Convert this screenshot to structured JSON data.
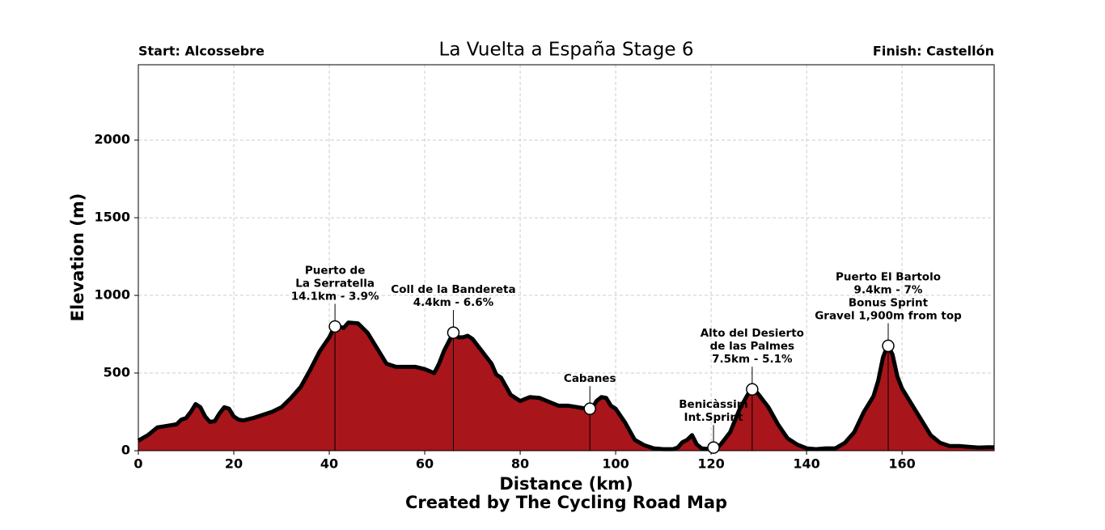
{
  "chart_data": {
    "type": "area",
    "title": "La Vuelta a España Stage 6",
    "start_label": "Start: Alcossebre",
    "finish_label": "Finish: Castellón",
    "xlabel": "Distance (km)",
    "ylabel": "Elevation (m)",
    "footer": "Created by The Cycling Road Map",
    "color": "#a8151b",
    "line_color": "#000000",
    "grid": true,
    "xlim": [
      0,
      179.3
    ],
    "ylim": [
      0,
      2485
    ],
    "xticks": [
      0,
      20,
      40,
      60,
      80,
      100,
      120,
      140,
      160
    ],
    "yticks": [
      0,
      500,
      1000,
      1500,
      2000
    ],
    "x": [
      0,
      2,
      4,
      6,
      8,
      9,
      10,
      11,
      12,
      13,
      14,
      15,
      16,
      17,
      18,
      19,
      20,
      21,
      22,
      24,
      26,
      28,
      30,
      32,
      34,
      36,
      38,
      40,
      41,
      42,
      43,
      44,
      46,
      48,
      50,
      52,
      54,
      56,
      58,
      60,
      62,
      63,
      64,
      66,
      67,
      68,
      69,
      70,
      72,
      74,
      75,
      76,
      78,
      80,
      82,
      84,
      86,
      88,
      90,
      92,
      94,
      95,
      96,
      97,
      98,
      99,
      100,
      102,
      104,
      106,
      108,
      110,
      112,
      113,
      114,
      115,
      116,
      117,
      118,
      120,
      121,
      122,
      124,
      126,
      128,
      129,
      130,
      132,
      134,
      136,
      138,
      140,
      142,
      144,
      146,
      148,
      150,
      152,
      154,
      155,
      156,
      157,
      158,
      159,
      160,
      162,
      164,
      166,
      168,
      170,
      172,
      174,
      176,
      178,
      179.3
    ],
    "values": [
      65,
      100,
      150,
      160,
      170,
      200,
      210,
      250,
      300,
      280,
      220,
      185,
      190,
      240,
      280,
      270,
      220,
      200,
      195,
      210,
      230,
      250,
      280,
      340,
      410,
      520,
      640,
      730,
      790,
      800,
      790,
      825,
      820,
      760,
      660,
      560,
      540,
      540,
      540,
      525,
      500,
      560,
      640,
      760,
      730,
      730,
      740,
      720,
      640,
      560,
      490,
      470,
      360,
      320,
      345,
      340,
      315,
      290,
      290,
      280,
      270,
      270,
      320,
      345,
      340,
      290,
      270,
      180,
      70,
      35,
      15,
      10,
      10,
      20,
      55,
      70,
      100,
      40,
      15,
      10,
      10,
      40,
      120,
      270,
      380,
      395,
      360,
      280,
      170,
      80,
      40,
      15,
      10,
      15,
      15,
      50,
      120,
      250,
      350,
      450,
      600,
      680,
      620,
      480,
      400,
      300,
      200,
      100,
      50,
      30,
      30,
      25,
      20,
      22,
      22
    ],
    "annotations": [
      {
        "label": [
          "Puerto de",
          "La Serratella",
          "14.1km - 3.9%"
        ],
        "x": 41.2,
        "y": 800
      },
      {
        "label": [
          "Coll de la Bandereta",
          "4.4km - 6.6%"
        ],
        "x": 66,
        "y": 760
      },
      {
        "label": [
          "Cabanes"
        ],
        "x": 94.6,
        "y": 270
      },
      {
        "label": [
          "Benicàssim",
          "Int.Sprint"
        ],
        "x": 120.5,
        "y": 20
      },
      {
        "label": [
          "Alto del Desierto",
          "de las Palmes",
          "7.5km - 5.1%"
        ],
        "x": 128.6,
        "y": 395
      },
      {
        "label": [
          "Puerto El Bartolo",
          "9.4km - 7%",
          "Bonus Sprint",
          "Gravel 1,900m from top"
        ],
        "x": 157.1,
        "y": 675
      }
    ]
  }
}
